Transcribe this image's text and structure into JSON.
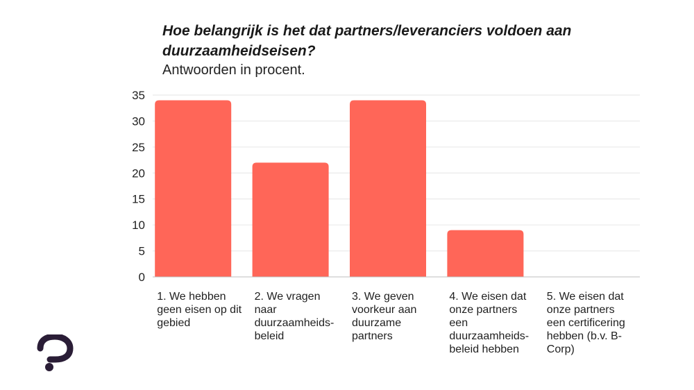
{
  "chart_data": {
    "type": "bar",
    "title": "Hoe belangrijk is het dat partners/leveranciers voldoen aan duurzaamheidseisen?",
    "subtitle": "Antwoorden in procent.",
    "categories": [
      "1. We hebben geen eisen op dit gebied",
      "2. We vragen naar duurzaamheids-beleid",
      "3. We geven voorkeur aan duurzame partners",
      "4. We eisen dat onze partners een duurzaamheids-beleid hebben",
      "5. We eisen dat onze partners een certificering hebben (b.v. B-Corp)"
    ],
    "values": [
      34,
      22,
      34,
      9,
      0
    ],
    "ylim": [
      0,
      35
    ],
    "yticks": [
      "0",
      "5",
      "10",
      "15",
      "20",
      "25",
      "30",
      "35"
    ],
    "xlabel": "",
    "ylabel": "",
    "grid": true,
    "legend": "none",
    "bar_color": "#ff6658",
    "grid_color": "#e6e6e6"
  },
  "logo": {
    "icon": "question-mark-logo-icon",
    "color": "#2a1d36"
  }
}
